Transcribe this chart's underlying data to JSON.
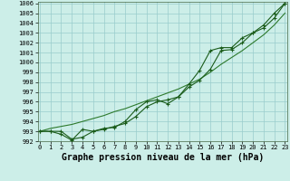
{
  "x": [
    0,
    1,
    2,
    3,
    4,
    5,
    6,
    7,
    8,
    9,
    10,
    11,
    12,
    13,
    14,
    15,
    16,
    17,
    18,
    19,
    20,
    21,
    22,
    23
  ],
  "line1": [
    993.0,
    993.0,
    993.0,
    992.2,
    992.4,
    993.0,
    993.3,
    993.4,
    994.0,
    995.2,
    996.0,
    996.2,
    995.8,
    996.5,
    997.5,
    998.2,
    999.3,
    1001.2,
    1001.3,
    1002.0,
    1003.0,
    1003.5,
    1004.5,
    1006.0
  ],
  "line2": [
    993.0,
    993.0,
    992.7,
    992.1,
    993.2,
    993.0,
    993.2,
    993.5,
    993.8,
    994.5,
    995.5,
    996.0,
    996.2,
    996.5,
    997.8,
    999.2,
    1001.2,
    1001.5,
    1001.5,
    1002.5,
    1003.0,
    1003.8,
    1005.0,
    1006.0
  ],
  "line3": [
    993.0,
    993.3,
    993.5,
    993.7,
    994.0,
    994.3,
    994.6,
    995.0,
    995.3,
    995.7,
    996.1,
    996.5,
    996.9,
    997.3,
    997.8,
    998.3,
    999.0,
    999.8,
    1000.5,
    1001.2,
    1002.0,
    1002.8,
    1003.8,
    1005.0
  ],
  "ylim_min": 992,
  "ylim_max": 1006,
  "xlim_min": 0,
  "xlim_max": 23,
  "yticks": [
    992,
    993,
    994,
    995,
    996,
    997,
    998,
    999,
    1000,
    1001,
    1002,
    1003,
    1004,
    1005,
    1006
  ],
  "xticks": [
    0,
    1,
    2,
    3,
    4,
    5,
    6,
    7,
    8,
    9,
    10,
    11,
    12,
    13,
    14,
    15,
    16,
    17,
    18,
    19,
    20,
    21,
    22,
    23
  ],
  "xlabel": "Graphe pression niveau de la mer (hPa)",
  "line_color_dark": "#1a5c1a",
  "line_color_mid": "#2d7a2d",
  "bg_color": "#cceee8",
  "grid_color": "#99cccc",
  "tick_fontsize": 5.0,
  "xlabel_fontsize": 7.0,
  "fig_width": 3.2,
  "fig_height": 2.0,
  "dpi": 100
}
